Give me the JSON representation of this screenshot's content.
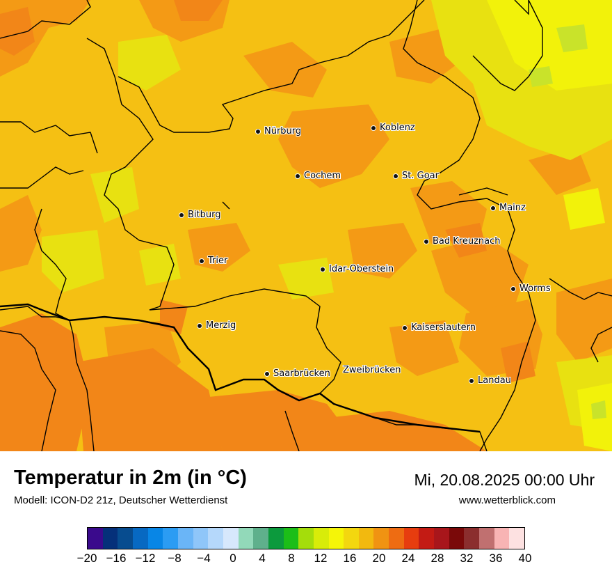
{
  "map": {
    "cities": [
      {
        "name": "Nürburg"
      },
      {
        "name": "Koblenz"
      },
      {
        "name": "Cochem"
      },
      {
        "name": "St. Goar"
      },
      {
        "name": "Mainz"
      },
      {
        "name": "Bitburg"
      },
      {
        "name": "Bad Kreuznach"
      },
      {
        "name": "Trier"
      },
      {
        "name": "Idar-Oberstein"
      },
      {
        "name": "Worms"
      },
      {
        "name": "Merzig"
      },
      {
        "name": "Kaiserslautern"
      },
      {
        "name": "Saarbrücken"
      },
      {
        "name": "Zweibrücken"
      },
      {
        "name": "Landau"
      }
    ],
    "palette": {
      "base": "#f5c013",
      "warm": "#f49a15",
      "hot": "#f28618",
      "cool": "#e8e111",
      "cooler": "#f2f20a",
      "green": "#c9e32a",
      "border": "#000000"
    }
  },
  "title": "Temperatur in 2m (in °C)",
  "model": "Modell: ICON-D2 21z, Deutscher Wetterdienst",
  "datetime": "Mi, 20.08.2025 00:00 Uhr",
  "website": "www.wetterblick.com",
  "colorbar": {
    "colors": [
      "#3a0a8c",
      "#05307a",
      "#074c8f",
      "#0769c2",
      "#0886e6",
      "#2b9cf3",
      "#6ab5f7",
      "#8fc6f9",
      "#b5d8fb",
      "#d7e8fc",
      "#92d9b9",
      "#5fb08c",
      "#0c9a3d",
      "#1cbe18",
      "#a4dd0b",
      "#d8ec09",
      "#f5f508",
      "#f3d70f",
      "#f2b90f",
      "#f09312",
      "#ee6c12",
      "#e73d0f",
      "#c31b14",
      "#a8161b",
      "#7a0909",
      "#8b2e2e",
      "#c07070",
      "#f8b4b4",
      "#fde1e1"
    ],
    "ticks": [
      "−20",
      "−16",
      "−12",
      "−8",
      "−4",
      "0",
      "4",
      "8",
      "12",
      "16",
      "20",
      "24",
      "28",
      "32",
      "36",
      "40"
    ]
  }
}
